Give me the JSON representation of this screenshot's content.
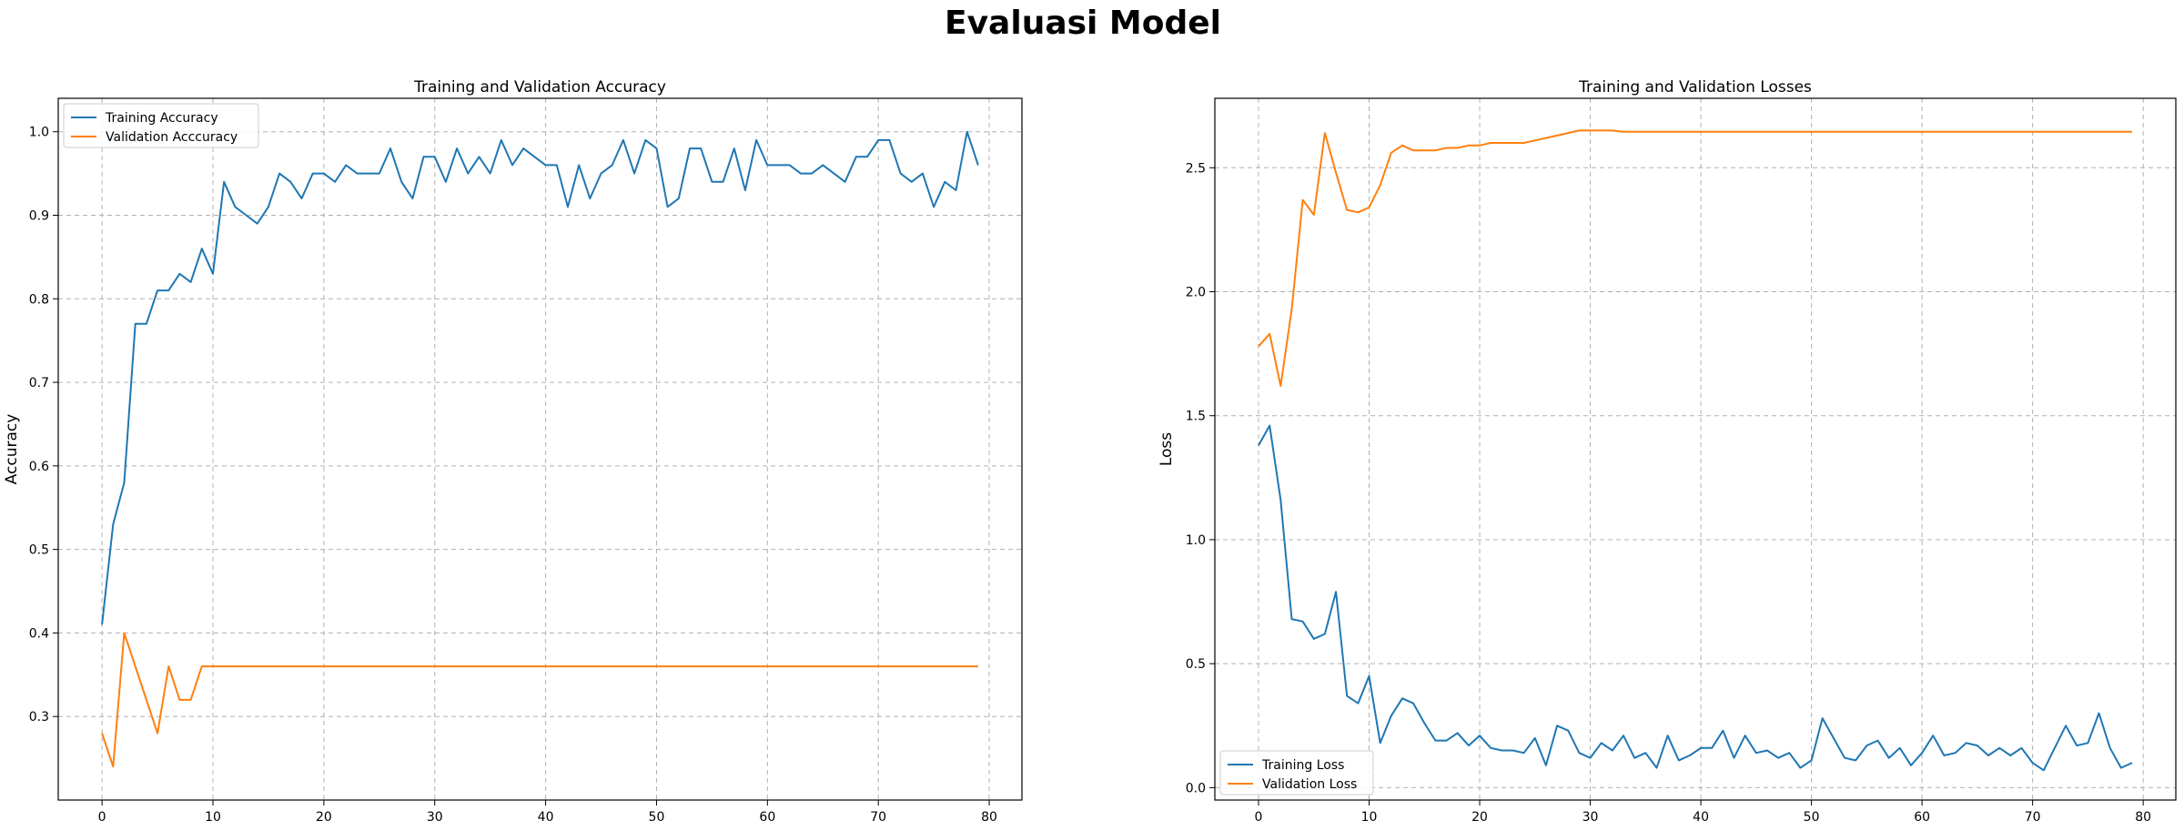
{
  "figure": {
    "suptitle": "Evaluasi Model"
  },
  "colors": {
    "training": "#1f77b4",
    "validation": "#ff7f0e",
    "grid": "#b0b0b0"
  },
  "chart_data": [
    {
      "type": "line",
      "title": "Training and Validation Accuracy",
      "xlabel": "",
      "ylabel": "Accuracy",
      "xlim": [
        -3.95,
        82.95
      ],
      "ylim": [
        0.2,
        1.04
      ],
      "xticks": [
        0,
        10,
        20,
        30,
        40,
        50,
        60,
        70,
        80
      ],
      "yticks": [
        0.3,
        0.4,
        0.5,
        0.6,
        0.7,
        0.8,
        0.9,
        1.0
      ],
      "grid": true,
      "legend_position": "upper left",
      "series": [
        {
          "name": "Training Accuracy",
          "color": "#1f77b4",
          "values": [
            0.41,
            0.53,
            0.58,
            0.77,
            0.77,
            0.81,
            0.81,
            0.83,
            0.82,
            0.86,
            0.83,
            0.94,
            0.91,
            0.9,
            0.89,
            0.91,
            0.95,
            0.94,
            0.92,
            0.95,
            0.95,
            0.94,
            0.96,
            0.95,
            0.95,
            0.95,
            0.98,
            0.94,
            0.92,
            0.97,
            0.97,
            0.94,
            0.98,
            0.95,
            0.97,
            0.95,
            0.99,
            0.96,
            0.98,
            0.97,
            0.96,
            0.96,
            0.91,
            0.96,
            0.92,
            0.95,
            0.96,
            0.99,
            0.95,
            0.99,
            0.98,
            0.91,
            0.92,
            0.98,
            0.98,
            0.94,
            0.94,
            0.98,
            0.93,
            0.99,
            0.96,
            0.96,
            0.96,
            0.95,
            0.95,
            0.96,
            0.95,
            0.94,
            0.97,
            0.97,
            0.99,
            0.99,
            0.95,
            0.94,
            0.95,
            0.91,
            0.94,
            0.93,
            1.0,
            0.96
          ]
        },
        {
          "name": "Validation Acccuracy",
          "color": "#ff7f0e",
          "values": [
            0.28,
            0.24,
            0.4,
            0.36,
            0.32,
            0.28,
            0.36,
            0.32,
            0.32,
            0.36,
            0.36,
            0.36,
            0.36,
            0.36,
            0.36,
            0.36,
            0.36,
            0.36,
            0.36,
            0.36,
            0.36,
            0.36,
            0.36,
            0.36,
            0.36,
            0.36,
            0.36,
            0.36,
            0.36,
            0.36,
            0.36,
            0.36,
            0.36,
            0.36,
            0.36,
            0.36,
            0.36,
            0.36,
            0.36,
            0.36,
            0.36,
            0.36,
            0.36,
            0.36,
            0.36,
            0.36,
            0.36,
            0.36,
            0.36,
            0.36,
            0.36,
            0.36,
            0.36,
            0.36,
            0.36,
            0.36,
            0.36,
            0.36,
            0.36,
            0.36,
            0.36,
            0.36,
            0.36,
            0.36,
            0.36,
            0.36,
            0.36,
            0.36,
            0.36,
            0.36,
            0.36,
            0.36,
            0.36,
            0.36,
            0.36,
            0.36,
            0.36,
            0.36,
            0.36,
            0.36
          ]
        }
      ]
    },
    {
      "type": "line",
      "title": "Training and Validation Losses",
      "xlabel": "",
      "ylabel": "Loss",
      "xlim": [
        -3.95,
        82.95
      ],
      "ylim": [
        -0.05,
        2.78
      ],
      "xticks": [
        0,
        10,
        20,
        30,
        40,
        50,
        60,
        70,
        80
      ],
      "yticks": [
        0.0,
        0.5,
        1.0,
        1.5,
        2.0,
        2.5
      ],
      "grid": true,
      "legend_position": "lower left",
      "series": [
        {
          "name": "Training Loss",
          "color": "#1f77b4",
          "values": [
            1.38,
            1.46,
            1.16,
            0.68,
            0.67,
            0.6,
            0.62,
            0.79,
            0.37,
            0.34,
            0.45,
            0.18,
            0.29,
            0.36,
            0.34,
            0.26,
            0.19,
            0.19,
            0.22,
            0.17,
            0.21,
            0.16,
            0.15,
            0.15,
            0.14,
            0.2,
            0.09,
            0.25,
            0.23,
            0.14,
            0.12,
            0.18,
            0.15,
            0.21,
            0.12,
            0.14,
            0.08,
            0.21,
            0.11,
            0.13,
            0.16,
            0.16,
            0.23,
            0.12,
            0.21,
            0.14,
            0.15,
            0.12,
            0.14,
            0.08,
            0.11,
            0.28,
            0.2,
            0.12,
            0.11,
            0.17,
            0.19,
            0.12,
            0.16,
            0.09,
            0.14,
            0.21,
            0.13,
            0.14,
            0.18,
            0.17,
            0.13,
            0.16,
            0.13,
            0.16,
            0.1,
            0.07,
            0.16,
            0.25,
            0.17,
            0.18,
            0.3,
            0.16,
            0.08,
            0.1
          ]
        },
        {
          "name": "Validation Loss",
          "color": "#ff7f0e",
          "values": [
            1.78,
            1.83,
            1.62,
            1.93,
            2.37,
            2.31,
            2.64,
            2.48,
            2.33,
            2.32,
            2.34,
            2.43,
            2.56,
            2.59,
            2.57,
            2.57,
            2.57,
            2.58,
            2.58,
            2.59,
            2.59,
            2.6,
            2.6,
            2.6,
            2.6,
            2.61,
            2.62,
            2.63,
            2.64,
            2.65,
            2.65,
            2.65,
            2.65,
            2.645,
            2.645,
            2.645,
            2.645,
            2.645,
            2.645,
            2.645,
            2.645,
            2.645,
            2.645,
            2.645,
            2.645,
            2.645,
            2.645,
            2.645,
            2.645,
            2.645,
            2.645,
            2.645,
            2.645,
            2.645,
            2.645,
            2.645,
            2.645,
            2.645,
            2.645,
            2.645,
            2.645,
            2.645,
            2.645,
            2.645,
            2.645,
            2.645,
            2.645,
            2.645,
            2.645,
            2.645,
            2.645,
            2.645,
            2.645,
            2.645,
            2.645,
            2.645,
            2.645,
            2.645,
            2.645,
            2.645
          ]
        }
      ]
    }
  ]
}
